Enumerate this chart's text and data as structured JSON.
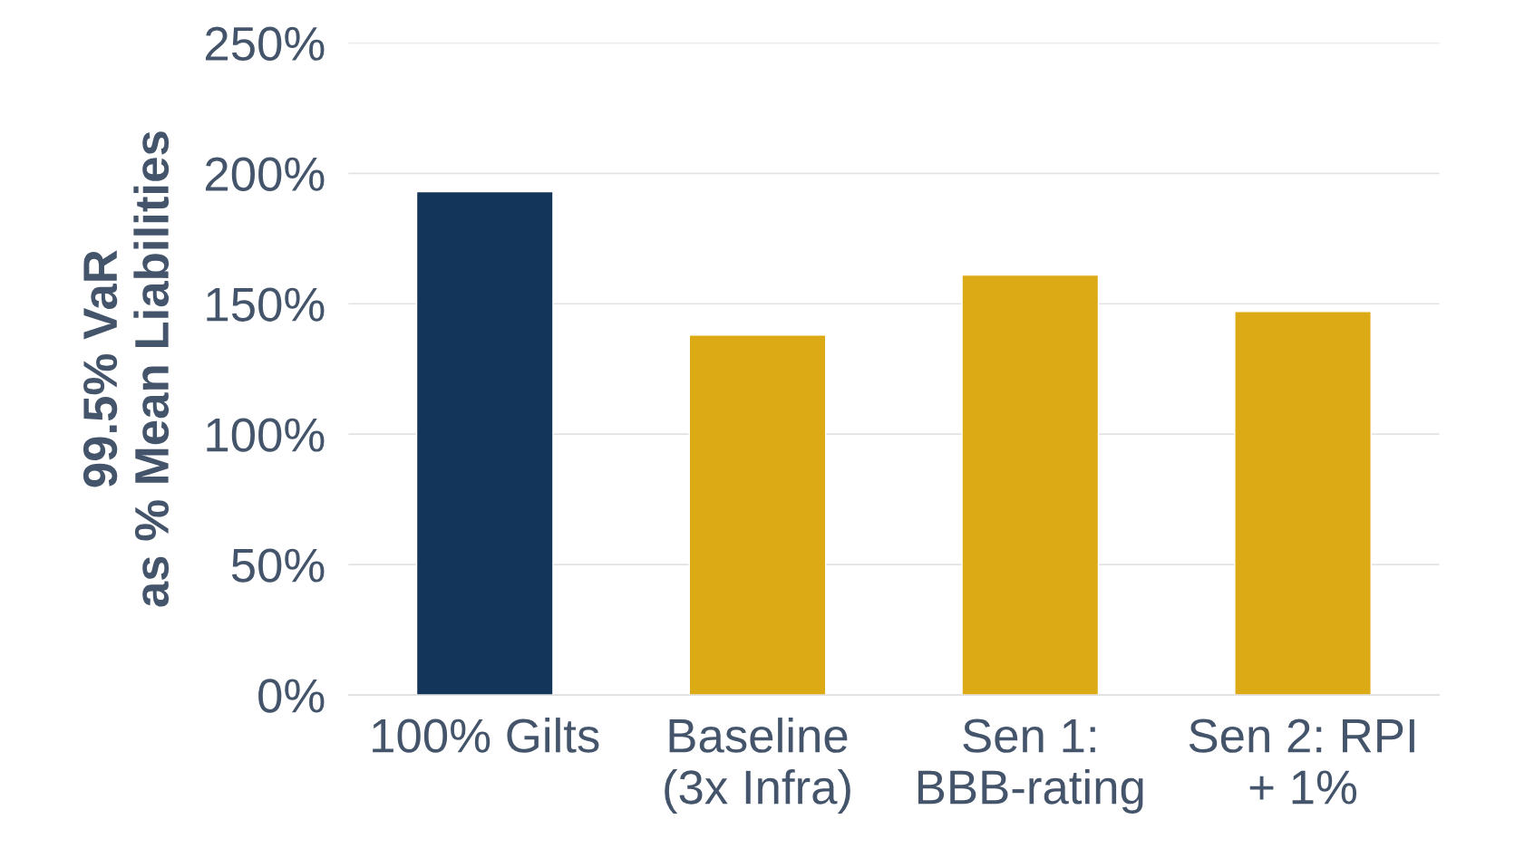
{
  "chart_data": {
    "type": "bar",
    "ylabel": "99.5% VaR\nas % Mean Liabilities",
    "categories": [
      "100% Gilts",
      "Baseline\n(3x Infra)",
      "Sen 1:\nBBB-rating",
      "Sen 2: RPI\n+ 1%"
    ],
    "values": [
      193,
      138,
      161,
      147
    ],
    "colors": [
      "#14355a",
      "#dcaa14",
      "#dcaa14",
      "#dcaa14"
    ],
    "ylim": [
      0,
      250
    ],
    "yticks": [
      {
        "value": 0,
        "label": "0%"
      },
      {
        "value": 50,
        "label": "50%"
      },
      {
        "value": 100,
        "label": "100%"
      },
      {
        "value": 150,
        "label": "150%"
      },
      {
        "value": 200,
        "label": "200%"
      },
      {
        "value": 250,
        "label": "250%"
      }
    ],
    "grid": "y"
  }
}
